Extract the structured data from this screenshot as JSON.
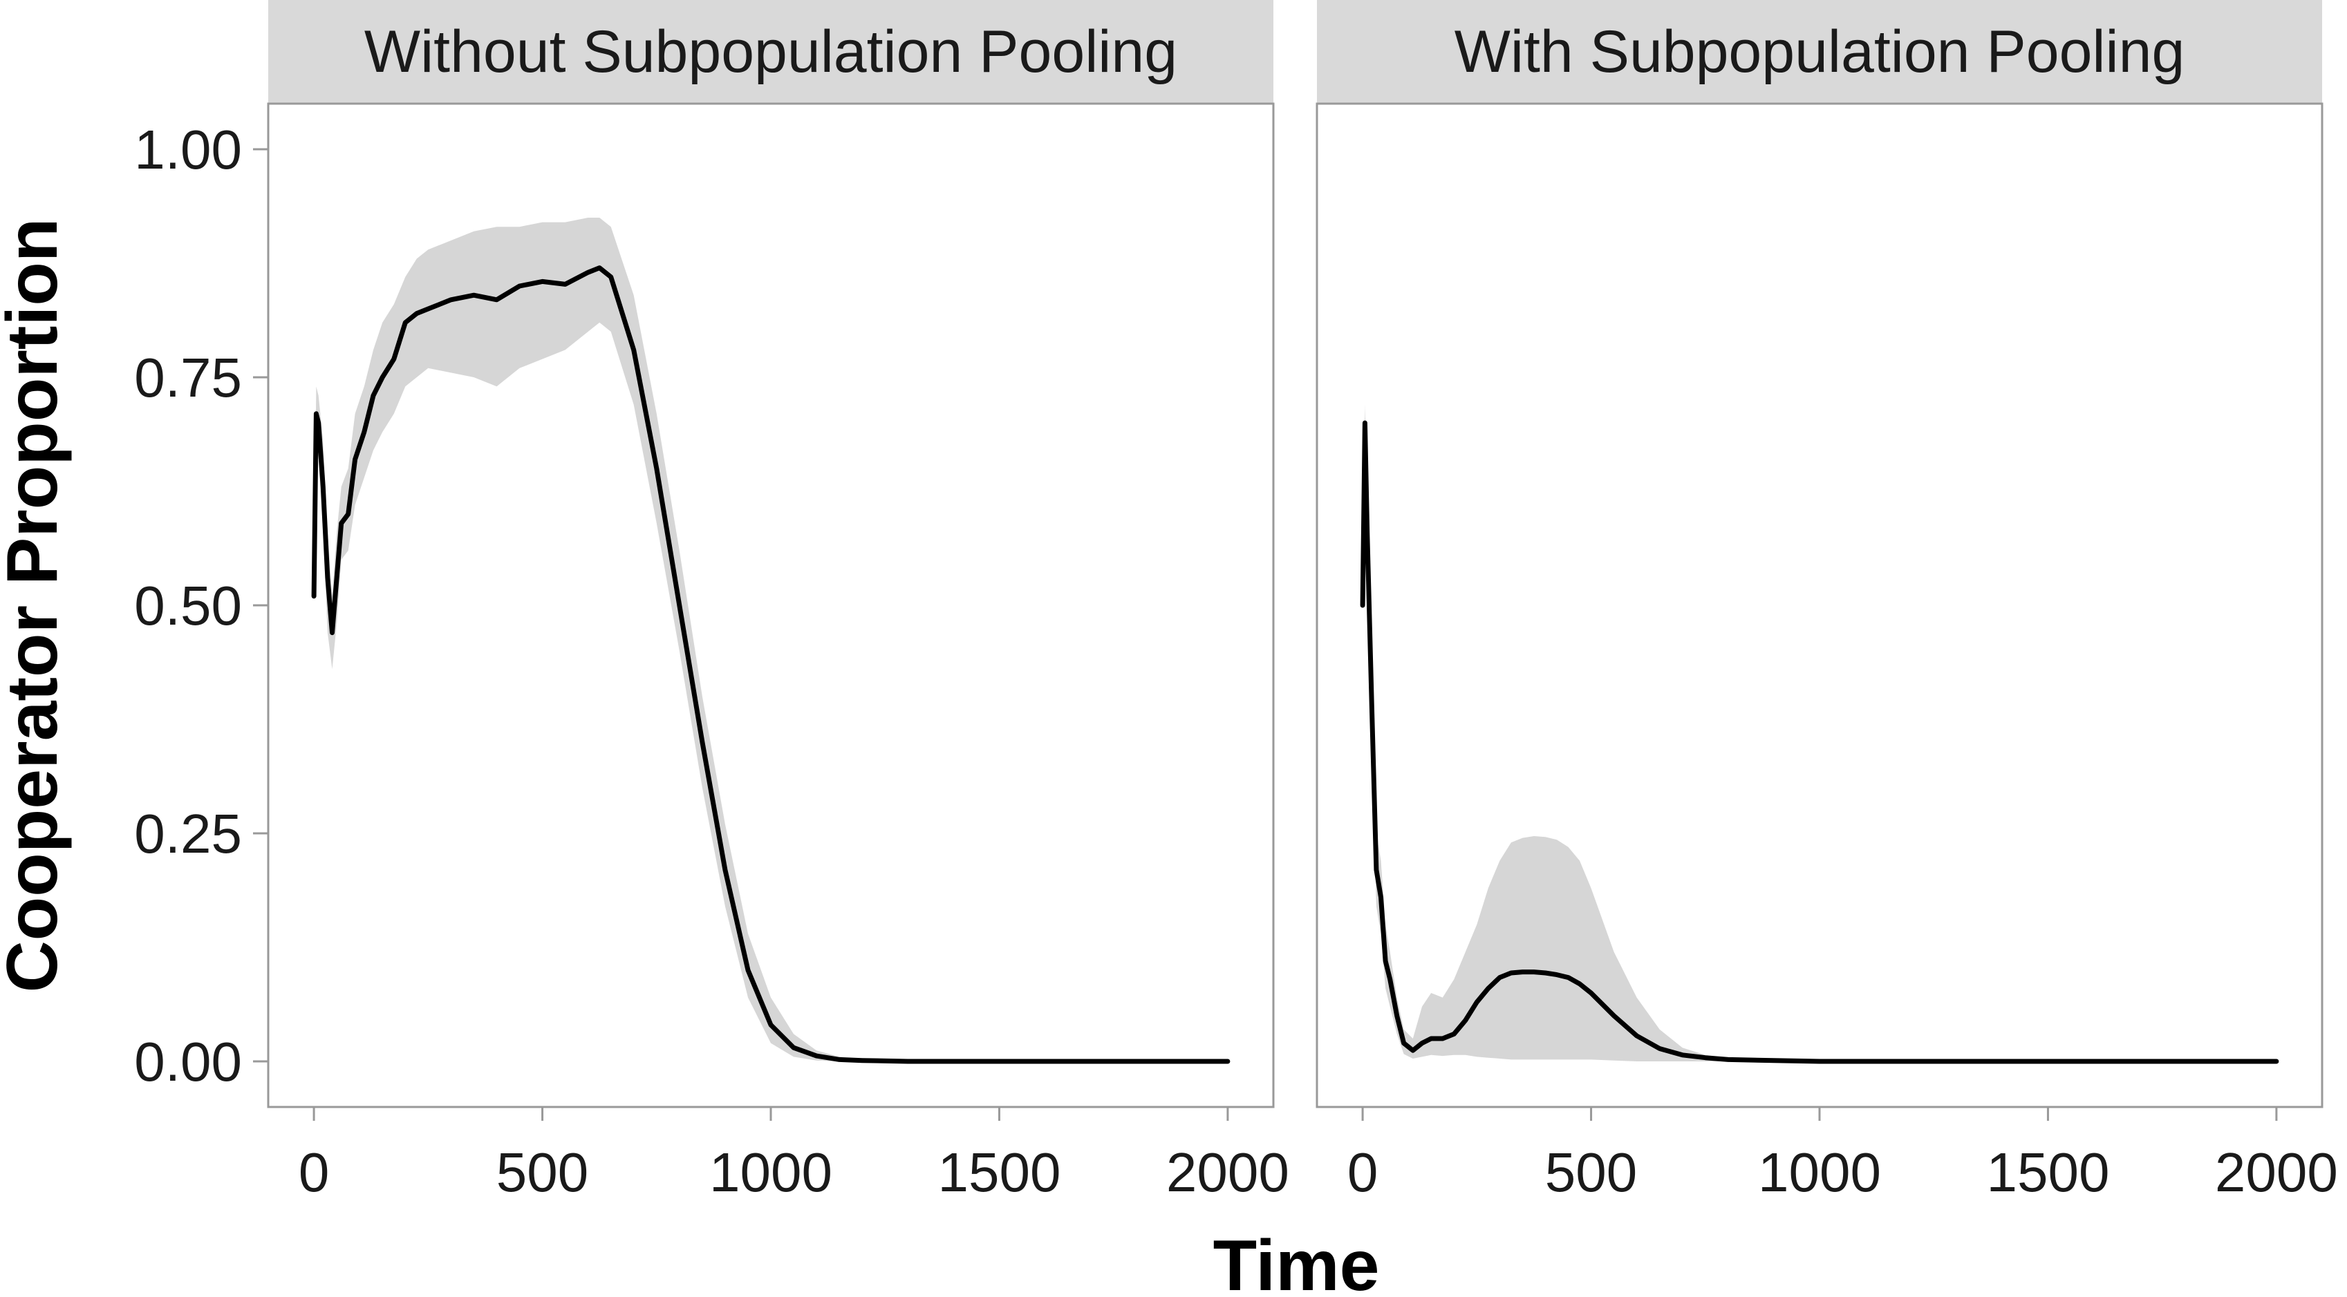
{
  "chart_data": {
    "type": "line",
    "ylabel": "Cooperator Proportion",
    "xlabel": "Time",
    "xlim": [
      -100,
      2100
    ],
    "ylim": [
      -0.05,
      1.05
    ],
    "x_ticks": [
      0,
      500,
      1000,
      1500,
      2000
    ],
    "y_ticks": [
      0.0,
      0.25,
      0.5,
      0.75,
      1.0
    ],
    "y_tick_labels": [
      "0.00",
      "0.25",
      "0.50",
      "0.75",
      "1.00"
    ],
    "grid": false,
    "band_color": "#d6d6d6",
    "line_color": "#000000",
    "strip_color": "#d9d9d9",
    "panels": [
      {
        "title": "Without Subpopulation Pooling",
        "x": [
          0,
          5,
          10,
          20,
          30,
          40,
          50,
          60,
          75,
          90,
          110,
          130,
          150,
          175,
          200,
          225,
          250,
          300,
          350,
          400,
          450,
          500,
          550,
          600,
          625,
          650,
          700,
          750,
          800,
          850,
          900,
          950,
          1000,
          1050,
          1100,
          1150,
          1200,
          1300,
          1400,
          1500,
          1750,
          2000
        ],
        "y": [
          0.51,
          0.71,
          0.7,
          0.63,
          0.53,
          0.47,
          0.53,
          0.59,
          0.6,
          0.66,
          0.69,
          0.73,
          0.75,
          0.77,
          0.81,
          0.82,
          0.825,
          0.835,
          0.84,
          0.835,
          0.85,
          0.855,
          0.852,
          0.865,
          0.87,
          0.86,
          0.78,
          0.65,
          0.5,
          0.35,
          0.21,
          0.1,
          0.04,
          0.015,
          0.006,
          0.002,
          0.001,
          0.0,
          0.0,
          0.0,
          0.0,
          0.0
        ],
        "lower": [
          0.51,
          0.68,
          0.66,
          0.58,
          0.47,
          0.43,
          0.48,
          0.55,
          0.56,
          0.61,
          0.64,
          0.67,
          0.69,
          0.71,
          0.74,
          0.75,
          0.76,
          0.755,
          0.75,
          0.74,
          0.76,
          0.77,
          0.78,
          0.8,
          0.81,
          0.8,
          0.72,
          0.59,
          0.45,
          0.3,
          0.17,
          0.07,
          0.02,
          0.005,
          0.001,
          0.0,
          0.0,
          0.0,
          0.0,
          0.0,
          0.0,
          0.0
        ],
        "upper": [
          0.51,
          0.74,
          0.73,
          0.68,
          0.58,
          0.51,
          0.58,
          0.63,
          0.65,
          0.71,
          0.74,
          0.78,
          0.81,
          0.83,
          0.86,
          0.88,
          0.89,
          0.9,
          0.91,
          0.915,
          0.915,
          0.92,
          0.92,
          0.925,
          0.925,
          0.915,
          0.84,
          0.71,
          0.56,
          0.4,
          0.26,
          0.14,
          0.07,
          0.03,
          0.012,
          0.005,
          0.002,
          0.001,
          0.0,
          0.0,
          0.0,
          0.0
        ]
      },
      {
        "title": "With Subpopulation Pooling",
        "x": [
          0,
          5,
          10,
          20,
          30,
          40,
          50,
          60,
          75,
          90,
          110,
          130,
          150,
          175,
          200,
          225,
          250,
          275,
          300,
          325,
          350,
          375,
          400,
          425,
          450,
          475,
          500,
          550,
          600,
          650,
          700,
          750,
          800,
          900,
          1000,
          1200,
          1500,
          1750,
          2000
        ],
        "y": [
          0.5,
          0.7,
          0.58,
          0.39,
          0.21,
          0.18,
          0.11,
          0.09,
          0.05,
          0.02,
          0.012,
          0.02,
          0.025,
          0.025,
          0.03,
          0.045,
          0.065,
          0.08,
          0.092,
          0.097,
          0.098,
          0.098,
          0.097,
          0.095,
          0.092,
          0.085,
          0.075,
          0.05,
          0.028,
          0.014,
          0.007,
          0.004,
          0.002,
          0.001,
          0.0,
          0.0,
          0.0,
          0.0,
          0.0
        ],
        "lower": [
          0.5,
          0.68,
          0.54,
          0.35,
          0.17,
          0.14,
          0.08,
          0.06,
          0.03,
          0.008,
          0.003,
          0.005,
          0.007,
          0.006,
          0.007,
          0.007,
          0.005,
          0.004,
          0.003,
          0.002,
          0.002,
          0.002,
          0.002,
          0.002,
          0.002,
          0.002,
          0.002,
          0.001,
          0.0,
          0.0,
          0.0,
          0.0,
          0.0,
          0.0,
          0.0,
          0.0,
          0.0,
          0.0,
          0.0
        ],
        "upper": [
          0.5,
          0.72,
          0.62,
          0.43,
          0.25,
          0.22,
          0.15,
          0.12,
          0.07,
          0.035,
          0.025,
          0.06,
          0.075,
          0.07,
          0.09,
          0.12,
          0.15,
          0.19,
          0.22,
          0.24,
          0.245,
          0.247,
          0.246,
          0.243,
          0.235,
          0.22,
          0.19,
          0.12,
          0.07,
          0.035,
          0.015,
          0.007,
          0.004,
          0.002,
          0.001,
          0.0,
          0.0,
          0.0,
          0.0
        ]
      }
    ]
  }
}
